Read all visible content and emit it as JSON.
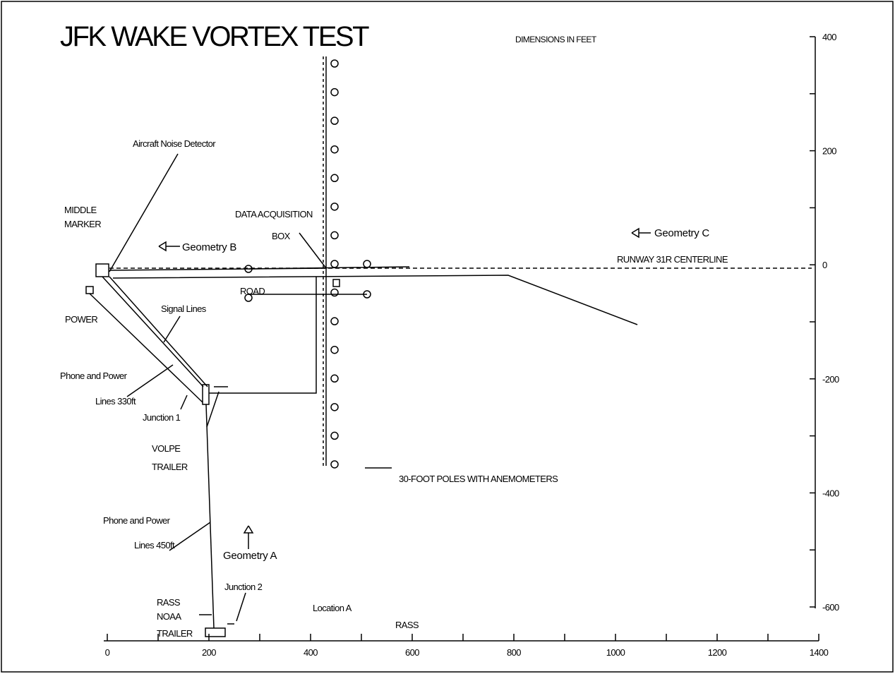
{
  "title": "JFK WAKE VORTEX TEST",
  "units_note": "DIMENSIONS IN FEET",
  "labels": [
    "Aircraft Noise Detector",
    "MIDDLE",
    "MARKER",
    "DATA ACQUISITION",
    "BOX",
    "Geometry B",
    "Geometry C",
    "RUNWAY 31R CENTERLINE",
    "ROAD",
    "POWER",
    "Signal Lines",
    "Phone and Power",
    "Lines 330ft",
    "Junction 1",
    "VOLPE",
    "TRAILER",
    "30-FOOT POLES  WITH ANEMOMETERS",
    "Phone and Power",
    "Lines 450ft",
    "Geometry A",
    "Junction 2",
    "RASS",
    "NOAA",
    "TRAILER",
    "Location A",
    "RASS"
  ],
  "x_axis": {
    "ticks": [
      0,
      200,
      400,
      600,
      800,
      1000,
      1200,
      1400
    ]
  },
  "y_axis": {
    "ticks": [
      400,
      200,
      0,
      -200,
      -400,
      -600
    ]
  }
}
